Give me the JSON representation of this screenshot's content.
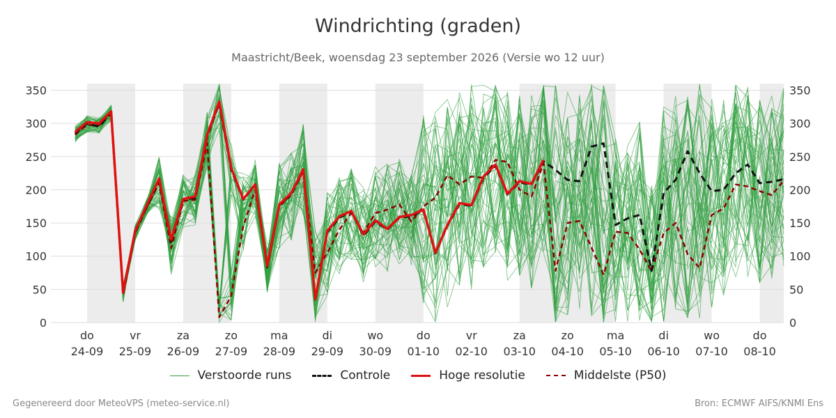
{
  "title": "Windrichting (graden)",
  "subtitle": "Maastricht/Beek, woensdag 23 september 2026 (Versie wo 12 uur)",
  "footer": {
    "left": "Gegenereerd door MeteoVPS (meteo-service.nl)",
    "right": "Bron: ECMWF AIFS/KNMI Ens"
  },
  "legend": [
    {
      "label": "Verstoorde runs",
      "color": "#2e9e3e",
      "style": "thin"
    },
    {
      "label": "Controle",
      "color": "#111111",
      "style": "dashed"
    },
    {
      "label": "Hoge resolutie",
      "color": "#e01010",
      "style": "solid"
    },
    {
      "label": "Middelste (P50)",
      "color": "#8b0000",
      "style": "dashed"
    }
  ],
  "chart_data": {
    "type": "line",
    "title": "Windrichting (graden)",
    "ylim": [
      0,
      360
    ],
    "yticks": [
      0,
      50,
      100,
      150,
      200,
      250,
      300,
      350
    ],
    "y_right_axis": true,
    "grid": "horizontal",
    "legend_position": "bottom",
    "x_unit": "days from 24-09 00:00",
    "xlim": [
      0,
      14.5
    ],
    "x_ticks": [
      {
        "day": "do",
        "date": "24-09"
      },
      {
        "day": "vr",
        "date": "25-09"
      },
      {
        "day": "za",
        "date": "26-09"
      },
      {
        "day": "zo",
        "date": "27-09"
      },
      {
        "day": "ma",
        "date": "28-09"
      },
      {
        "day": "di",
        "date": "29-09"
      },
      {
        "day": "wo",
        "date": "30-09"
      },
      {
        "day": "do",
        "date": "01-10"
      },
      {
        "day": "vr",
        "date": "02-10"
      },
      {
        "day": "za",
        "date": "03-10"
      },
      {
        "day": "zo",
        "date": "04-10"
      },
      {
        "day": "ma",
        "date": "05-10"
      },
      {
        "day": "di",
        "date": "06-10"
      },
      {
        "day": "wo",
        "date": "07-10"
      },
      {
        "day": "do",
        "date": "08-10"
      }
    ],
    "shaded_days": [
      0,
      2,
      4,
      6,
      9,
      10,
      12,
      14
    ],
    "colors": {
      "ensemble": "#2e9e3e",
      "control": "#111111",
      "hires": "#e01010",
      "median": "#8b0000",
      "shade": "#ececec",
      "grid": "#dddddd"
    },
    "ensemble_members": 50,
    "series": [
      {
        "name": "Hoge resolutie",
        "x": [
          -0.25,
          0,
          0.25,
          0.5,
          0.75,
          1.0,
          1.25,
          1.5,
          1.75,
          2.0,
          2.25,
          2.5,
          2.75,
          3.0,
          3.25,
          3.5,
          3.75,
          4.0,
          4.25,
          4.5,
          4.75,
          5.0,
          5.25,
          5.5,
          5.75,
          6.0,
          6.25,
          6.5,
          6.75,
          7.0,
          7.25,
          7.5,
          7.75,
          8.0,
          8.25,
          8.5,
          8.75,
          9.0,
          9.25,
          9.5
        ],
        "y": [
          287,
          302,
          300,
          318,
          45,
          138,
          178,
          217,
          125,
          186,
          190,
          283,
          333,
          233,
          186,
          208,
          85,
          178,
          195,
          231,
          35,
          138,
          160,
          168,
          133,
          154,
          141,
          159,
          162,
          170,
          105,
          147,
          180,
          177,
          220,
          238,
          194,
          213,
          209,
          245
        ]
      },
      {
        "name": "Controle",
        "x": [
          -0.25,
          0,
          0.25,
          0.5,
          0.75,
          1.0,
          1.25,
          1.5,
          1.75,
          2.0,
          2.25,
          2.5,
          2.75,
          3.0,
          3.25,
          3.5,
          3.75,
          4.0,
          4.25,
          4.5,
          4.75,
          5.0,
          5.25,
          5.5,
          5.75,
          6.0,
          6.25,
          6.5,
          6.75,
          7.0,
          7.25,
          7.5,
          7.75,
          8.0,
          8.25,
          8.5,
          8.75,
          9.0,
          9.25,
          9.5,
          9.75,
          10.0,
          10.25,
          10.5,
          10.75,
          11.0,
          11.25,
          11.5,
          11.75,
          12.0,
          12.25,
          12.5,
          12.75,
          13.0,
          13.25,
          13.5,
          13.75,
          14.0,
          14.25,
          14.5
        ],
        "y": [
          285,
          300,
          295,
          316,
          42,
          136,
          175,
          213,
          122,
          185,
          188,
          280,
          330,
          230,
          185,
          207,
          83,
          177,
          193,
          229,
          36,
          136,
          158,
          167,
          131,
          152,
          140,
          158,
          160,
          169,
          104,
          146,
          178,
          176,
          218,
          236,
          193,
          211,
          208,
          243,
          230,
          215,
          213,
          265,
          270,
          147,
          157,
          162,
          78,
          195,
          215,
          258,
          225,
          198,
          200,
          225,
          238,
          210,
          212,
          216
        ]
      },
      {
        "name": "Middelste (P50)",
        "x": [
          -0.25,
          0,
          0.25,
          0.5,
          0.75,
          1.0,
          1.25,
          1.5,
          1.75,
          2.0,
          2.25,
          2.5,
          2.75,
          3.0,
          3.25,
          3.5,
          3.75,
          4.0,
          4.25,
          4.5,
          4.75,
          5.0,
          5.25,
          5.5,
          5.75,
          6.0,
          6.25,
          6.5,
          6.75,
          7.0,
          7.25,
          7.5,
          7.75,
          8.0,
          8.25,
          8.5,
          8.75,
          9.0,
          9.25,
          9.5,
          9.75,
          10.0,
          10.25,
          10.5,
          10.75,
          11.0,
          11.25,
          11.5,
          11.75,
          12.0,
          12.25,
          12.5,
          12.75,
          13.0,
          13.25,
          13.5,
          13.75,
          14.0,
          14.25,
          14.5
        ],
        "y": [
          283,
          298,
          297,
          315,
          48,
          135,
          175,
          210,
          112,
          183,
          185,
          270,
          8,
          40,
          145,
          200,
          85,
          175,
          192,
          228,
          75,
          105,
          140,
          165,
          135,
          165,
          170,
          178,
          152,
          175,
          188,
          222,
          208,
          220,
          218,
          245,
          242,
          200,
          190,
          240,
          78,
          150,
          153,
          113,
          72,
          137,
          135,
          110,
          77,
          135,
          150,
          103,
          82,
          162,
          172,
          208,
          205,
          198,
          192,
          214
        ]
      }
    ]
  }
}
